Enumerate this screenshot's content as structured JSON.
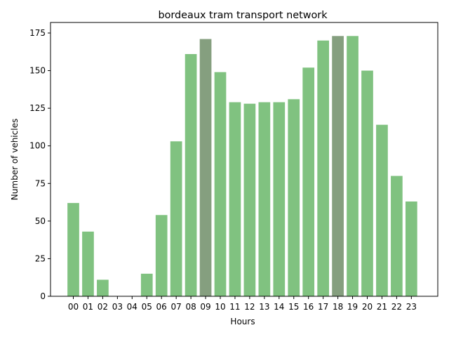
{
  "chart_data": {
    "type": "bar",
    "title": "bordeaux tram transport network",
    "xlabel": "Hours",
    "ylabel": "Number of vehicles",
    "categories": [
      "00",
      "01",
      "02",
      "03",
      "04",
      "05",
      "06",
      "07",
      "08",
      "09",
      "10",
      "11",
      "12",
      "13",
      "14",
      "15",
      "16",
      "17",
      "18",
      "19",
      "20",
      "21",
      "22",
      "23"
    ],
    "values": [
      62,
      43,
      11,
      0,
      0,
      15,
      54,
      103,
      161,
      171,
      149,
      129,
      128,
      129,
      129,
      131,
      152,
      170,
      173,
      173,
      150,
      114,
      80,
      63
    ],
    "highlighted": [
      "09",
      "18"
    ],
    "ylim": [
      0,
      182
    ],
    "yticks": [
      0,
      25,
      50,
      75,
      100,
      125,
      150,
      175
    ],
    "grid": false,
    "colors": {
      "bar": "#80c280",
      "highlight": "#859f7f",
      "axis": "#000000"
    }
  }
}
